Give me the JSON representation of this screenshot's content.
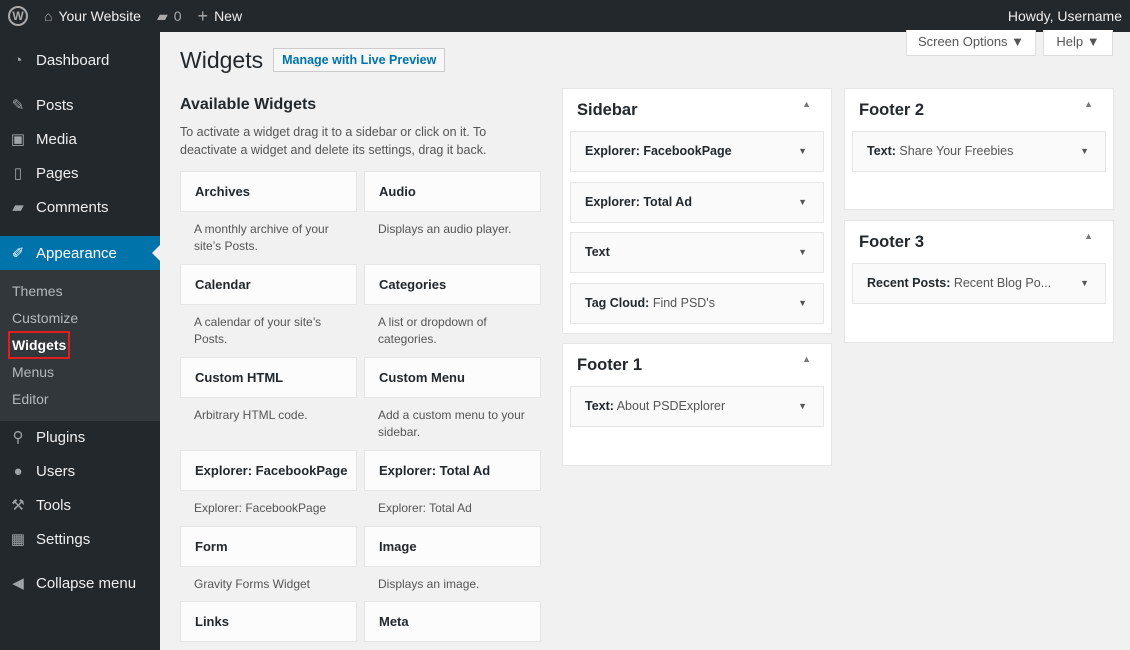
{
  "adminbar": {
    "site": "Your Website",
    "comments": "0",
    "new": "New",
    "howdy": "Howdy, Username"
  },
  "menu": {
    "items": [
      {
        "label": "Dashboard",
        "icon": "dashboard-icon",
        "glyph": "◔"
      },
      {
        "label": "Posts",
        "icon": "pin-icon",
        "glyph": "✎"
      },
      {
        "label": "Media",
        "icon": "media-icon",
        "glyph": "▣"
      },
      {
        "label": "Pages",
        "icon": "pages-icon",
        "glyph": "▯"
      },
      {
        "label": "Comments",
        "icon": "comment-icon",
        "glyph": "▰"
      },
      {
        "label": "Appearance",
        "icon": "brush-icon",
        "glyph": "✐"
      },
      {
        "label": "Plugins",
        "icon": "plugin-icon",
        "glyph": "⚲"
      },
      {
        "label": "Users",
        "icon": "user-icon",
        "glyph": "●"
      },
      {
        "label": "Tools",
        "icon": "wrench-icon",
        "glyph": "⚒"
      },
      {
        "label": "Settings",
        "icon": "settings-icon",
        "glyph": "▦"
      },
      {
        "label": "Collapse menu",
        "icon": "collapse-icon",
        "glyph": "◀"
      }
    ],
    "submenu": [
      "Themes",
      "Customize",
      "Widgets",
      "Menus",
      "Editor"
    ]
  },
  "header": {
    "title": "Widgets",
    "live_preview": "Manage with Live Preview",
    "screen_options": "Screen Options ▼",
    "help": "Help ▼"
  },
  "available": {
    "title": "Available Widgets",
    "desc": "To activate a widget drag it to a sidebar or click on it. To deactivate a widget and delete its settings, drag it back.",
    "widgets": [
      {
        "name": "Archives",
        "desc": "A monthly archive of your site’s Posts."
      },
      {
        "name": "Audio",
        "desc": "Displays an audio player."
      },
      {
        "name": "Calendar",
        "desc": "A calendar of your site’s Posts."
      },
      {
        "name": "Categories",
        "desc": "A list or dropdown of categories."
      },
      {
        "name": "Custom HTML",
        "desc": "Arbitrary HTML code."
      },
      {
        "name": "Custom Menu",
        "desc": "Add a custom menu to your sidebar."
      },
      {
        "name": "Explorer: FacebookPage",
        "desc": "Explorer: FacebookPage"
      },
      {
        "name": "Explorer: Total Ad",
        "desc": "Explorer: Total Ad"
      },
      {
        "name": "Form",
        "desc": "Gravity Forms Widget"
      },
      {
        "name": "Image",
        "desc": "Displays an image."
      },
      {
        "name": "Links",
        "desc": ""
      },
      {
        "name": "Meta",
        "desc": ""
      }
    ]
  },
  "areas": [
    {
      "title": "Sidebar",
      "items": [
        {
          "name": "Explorer: FacebookPage",
          "sub": ""
        },
        {
          "name": "Explorer: Total Ad",
          "sub": ""
        },
        {
          "name": "Text",
          "sub": ""
        },
        {
          "name": "Tag Cloud:",
          "sub": " Find PSD's"
        }
      ]
    },
    {
      "title": "Footer 1",
      "items": [
        {
          "name": "Text:",
          "sub": " About PSDExplorer"
        }
      ]
    },
    {
      "title": "Footer 2",
      "items": [
        {
          "name": "Text:",
          "sub": " Share Your Freebies"
        }
      ]
    },
    {
      "title": "Footer 3",
      "items": [
        {
          "name": "Recent Posts:",
          "sub": " Recent Blog Po..."
        }
      ]
    }
  ]
}
